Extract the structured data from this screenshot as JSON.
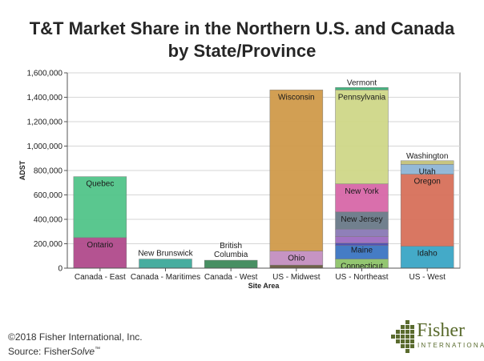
{
  "chart_data": {
    "type": "bar",
    "stacked": true,
    "title_line1": "T&T Market Share in the Northern U.S. and Canada",
    "title_line2": "by State/Province",
    "xlabel": "Site Area",
    "ylabel": "ADST",
    "ylim": [
      0,
      1600000
    ],
    "yticks": [
      0,
      200000,
      400000,
      600000,
      800000,
      1000000,
      1200000,
      1400000,
      1600000
    ],
    "ytick_labels": [
      "0",
      "200,000",
      "400,000",
      "600,000",
      "800,000",
      "1,000,000",
      "1,200,000",
      "1,400,000",
      "1,600,000"
    ],
    "grid": true,
    "categories": [
      "Canada - East",
      "Canada - Maritimes",
      "Canada - West",
      "US - Midwest",
      "US - Northeast",
      "US - West"
    ],
    "stacks": [
      {
        "category": "Canada - East",
        "segments": [
          {
            "label": "Ontario",
            "value": 250000,
            "color": "#b04a8c"
          },
          {
            "label": "Quebec",
            "value": 500000,
            "color": "#52c58a"
          }
        ]
      },
      {
        "category": "Canada - Maritimes",
        "segments": [
          {
            "label": "New Brunswick",
            "value": 75000,
            "color": "#3ea99a"
          }
        ]
      },
      {
        "category": "Canada - West",
        "segments": [
          {
            "label": "British Columbia",
            "value": 65000,
            "color": "#3e8a5a"
          }
        ]
      },
      {
        "category": "US - Midwest",
        "segments": [
          {
            "label": "",
            "value": 25000,
            "color": "#6a5a40"
          },
          {
            "label": "Ohio",
            "value": 115000,
            "color": "#c48fc0"
          },
          {
            "label": "Wisconsin",
            "value": 1320000,
            "color": "#d09a4a"
          }
        ]
      },
      {
        "category": "US - Northeast",
        "segments": [
          {
            "label": "Connecticut",
            "value": 75000,
            "color": "#8ec46a"
          },
          {
            "label": "",
            "value": 110000,
            "color": "#3c76c2"
          },
          {
            "label": "Maine",
            "value": 20000,
            "color": "#4a4ab0"
          },
          {
            "label": "",
            "value": 55000,
            "color": "#9c6cc0"
          },
          {
            "label": "",
            "value": 60000,
            "color": "#8a7ab6"
          },
          {
            "label": "New Jersey",
            "value": 140000,
            "color": "#6a7a88"
          },
          {
            "label": "New York",
            "value": 230000,
            "color": "#d868a8"
          },
          {
            "label": "Pennsylvania",
            "value": 770000,
            "color": "#cfd888"
          },
          {
            "label": "Vermont",
            "value": 20000,
            "color": "#3ab07a"
          }
        ]
      },
      {
        "category": "US - West",
        "segments": [
          {
            "label": "Idaho",
            "value": 180000,
            "color": "#3aa6c6"
          },
          {
            "label": "Oregon",
            "value": 590000,
            "color": "#d8705a"
          },
          {
            "label": "Utah",
            "value": 80000,
            "color": "#8fb6d6"
          },
          {
            "label": "Washington",
            "value": 30000,
            "color": "#c6c27a"
          }
        ]
      }
    ]
  },
  "footer": {
    "copyright": "©2018 Fisher International, Inc.",
    "source_prefix": "Source: Fisher",
    "source_product": "Solve",
    "source_tm": "™"
  },
  "logo": {
    "name": "Fisher",
    "tagline": "INTERNATIONAL",
    "icon": "fisher-grid-logo-icon",
    "color": "#5a6b2e"
  }
}
